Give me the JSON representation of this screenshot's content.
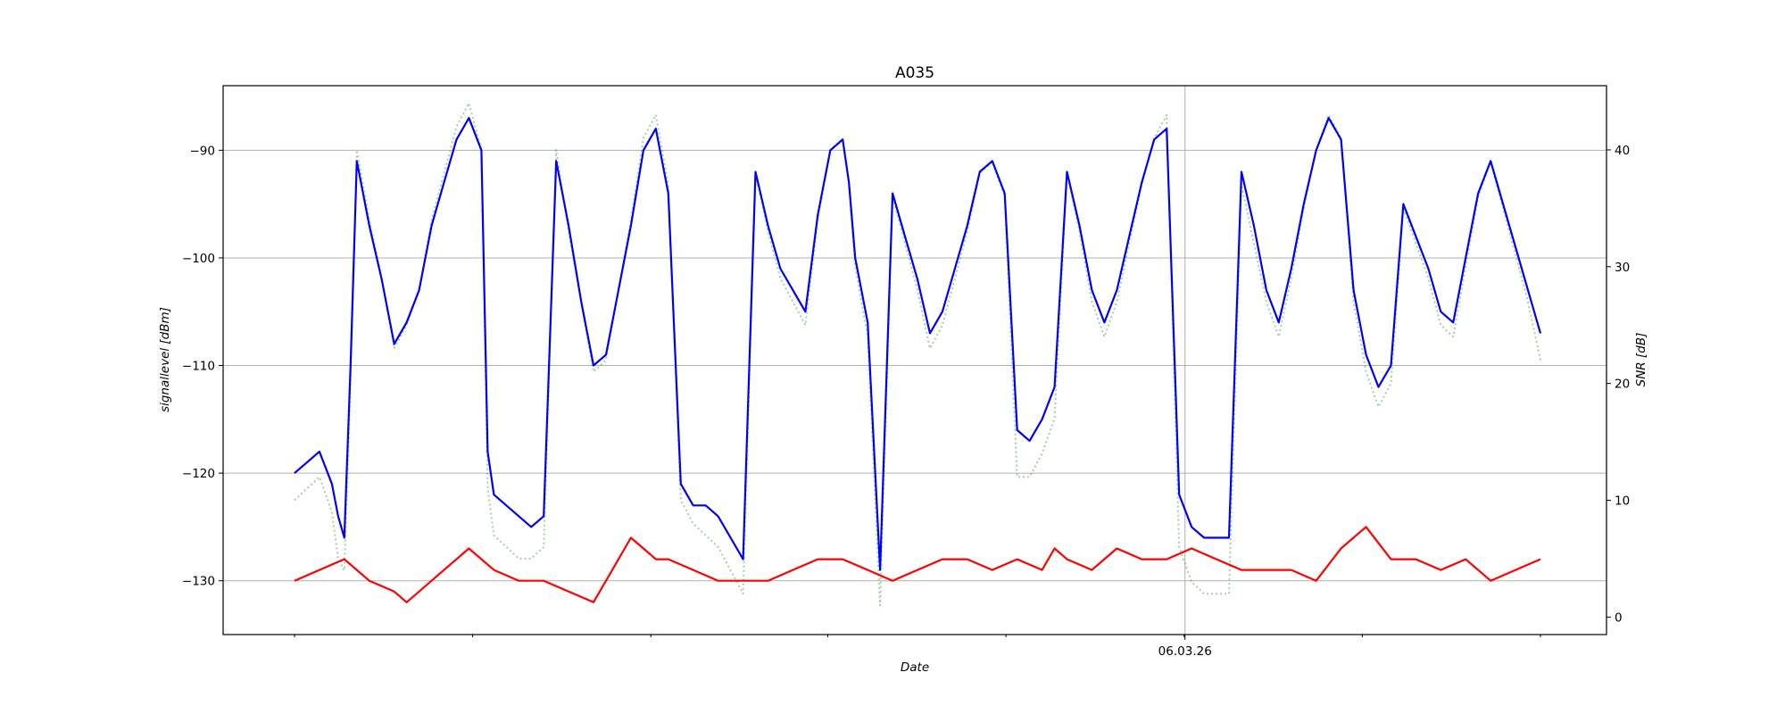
{
  "chart_data": {
    "type": "line",
    "title": "A035",
    "xlabel": "Date",
    "ylabel": "signallevel [dBm]",
    "y2label": "SNR [dB]",
    "x_tick_labels": [
      "06.03.26"
    ],
    "xlim": [
      0,
      100
    ],
    "ylim": [
      -135,
      -84
    ],
    "y2lim": [
      -1.5,
      45.5
    ],
    "yticks": [
      -130,
      -120,
      -110,
      -100,
      -90
    ],
    "ytick_labels": [
      "−130",
      "−120",
      "−110",
      "−100",
      "−90"
    ],
    "y2ticks": [
      0,
      10,
      20,
      30,
      40
    ],
    "y2tick_labels": [
      "0",
      "10",
      "20",
      "30",
      "40"
    ],
    "grid": true,
    "colors": {
      "signal": "#0000ff",
      "noise": "#ff0000",
      "snr": "#2ca02c"
    },
    "series": [
      {
        "key": "signal",
        "axis": "left",
        "style": "solid",
        "x": [
          0,
          1,
          2,
          3,
          3.5,
          4,
          4.5,
          5,
          6,
          7,
          8,
          9,
          10,
          10.5,
          11,
          12,
          13,
          14,
          15,
          15.5,
          16,
          17,
          18,
          19,
          20,
          21,
          22,
          23,
          24,
          25,
          26,
          27,
          28,
          29,
          30,
          31,
          32,
          33,
          34,
          35,
          36,
          37,
          38,
          39,
          40,
          41,
          42,
          43,
          44,
          44.5,
          45,
          46,
          47,
          48,
          49,
          50,
          51,
          52,
          53,
          54,
          55,
          56,
          57,
          58,
          59,
          60,
          61,
          62,
          63,
          64,
          65,
          66,
          67,
          68,
          69,
          70,
          71,
          72,
          73,
          74,
          75,
          76,
          77,
          78,
          79,
          80,
          81,
          82,
          83,
          84,
          85,
          86,
          87,
          88,
          89,
          90,
          91,
          92,
          93,
          94,
          95,
          96,
          97,
          98,
          99,
          100
        ],
        "y": [
          -120,
          -119,
          -118,
          -121,
          -124,
          -126,
          -110,
          -91,
          -97,
          -102,
          -108,
          -106,
          -103,
          -100,
          -97,
          -93,
          -89,
          -87,
          -90,
          -118,
          -122,
          -123,
          -124,
          -125,
          -124,
          -91,
          -97,
          -104,
          -110,
          -109,
          -103,
          -97,
          -90,
          -88,
          -94,
          -121,
          -123,
          -123,
          -124,
          -126,
          -128,
          -92,
          -97,
          -101,
          -103,
          -105,
          -96,
          -90,
          -89,
          -93,
          -100,
          -106,
          -129,
          -94,
          -98,
          -102,
          -107,
          -105,
          -101,
          -97,
          -92,
          -91,
          -94,
          -116,
          -117,
          -115,
          -112,
          -92,
          -97,
          -103,
          -106,
          -103,
          -98,
          -93,
          -89,
          -88,
          -122,
          -125,
          -126,
          -126,
          -126,
          -92,
          -97,
          -103,
          -106,
          -101,
          -95,
          -90,
          -87,
          -89,
          -103,
          -109,
          -112,
          -110,
          -95,
          -98,
          -101,
          -105,
          -106,
          -100,
          -94,
          -91,
          -95,
          -99,
          -103,
          -107
        ]
      },
      {
        "key": "noise",
        "axis": "left",
        "style": "solid",
        "x": [
          0,
          2,
          4,
          6,
          8,
          9,
          10,
          12,
          14,
          16,
          18,
          20,
          22,
          24,
          26,
          27,
          28,
          29,
          30,
          32,
          34,
          36,
          38,
          40,
          42,
          44,
          46,
          48,
          50,
          52,
          54,
          56,
          58,
          60,
          61,
          62,
          64,
          66,
          68,
          70,
          72,
          74,
          76,
          78,
          80,
          82,
          84,
          86,
          88,
          90,
          92,
          94,
          96,
          98,
          100
        ],
        "y": [
          -130,
          -129,
          -128,
          -130,
          -131,
          -132,
          -131,
          -129,
          -127,
          -129,
          -130,
          -130,
          -131,
          -132,
          -128,
          -126,
          -127,
          -128,
          -128,
          -129,
          -130,
          -130,
          -130,
          -129,
          -128,
          -128,
          -129,
          -130,
          -129,
          -128,
          -128,
          -129,
          -128,
          -129,
          -127,
          -128,
          -129,
          -127,
          -128,
          -128,
          -127,
          -128,
          -129,
          -129,
          -129,
          -130,
          -127,
          -125,
          -128,
          -128,
          -129,
          -128,
          -130,
          -129,
          -128
        ]
      },
      {
        "key": "snr",
        "axis": "right",
        "style": "dotted",
        "x": [
          0,
          1,
          2,
          3,
          3.5,
          4,
          4.5,
          5,
          6,
          7,
          8,
          9,
          10,
          10.5,
          11,
          12,
          13,
          14,
          15,
          15.5,
          16,
          17,
          18,
          19,
          20,
          21,
          22,
          23,
          24,
          25,
          26,
          27,
          28,
          29,
          30,
          31,
          32,
          33,
          34,
          35,
          36,
          37,
          38,
          39,
          40,
          41,
          42,
          43,
          44,
          44.5,
          45,
          46,
          47,
          48,
          49,
          50,
          51,
          52,
          53,
          54,
          55,
          56,
          57,
          58,
          59,
          60,
          61,
          62,
          63,
          64,
          65,
          66,
          67,
          68,
          69,
          70,
          71,
          72,
          73,
          74,
          75,
          76,
          77,
          78,
          79,
          80,
          81,
          82,
          83,
          84,
          85,
          86,
          87,
          88,
          89,
          90,
          91,
          92,
          93,
          94,
          95,
          96,
          97,
          98,
          99,
          100
        ],
        "y": [
          10,
          11,
          12,
          9,
          5,
          4,
          20,
          40,
          34,
          29,
          23,
          25,
          28,
          31,
          34,
          38,
          42,
          44,
          40,
          11,
          7,
          6,
          5,
          5,
          6,
          40,
          33,
          27,
          21,
          22,
          28,
          34,
          41,
          43,
          37,
          10,
          8,
          7,
          6,
          4,
          2,
          38,
          33,
          29,
          27,
          25,
          34,
          40,
          41,
          37,
          30,
          24,
          1,
          36,
          32,
          28,
          23,
          25,
          29,
          33,
          38,
          39,
          36,
          12,
          12,
          14,
          17,
          38,
          33,
          27,
          24,
          27,
          32,
          37,
          41,
          43,
          6,
          3,
          2,
          2,
          2,
          37,
          32,
          27,
          24,
          29,
          35,
          40,
          43,
          41,
          27,
          21,
          18,
          20,
          35,
          32,
          29,
          25,
          24,
          30,
          36,
          39,
          35,
          31,
          27,
          22
        ]
      }
    ]
  }
}
